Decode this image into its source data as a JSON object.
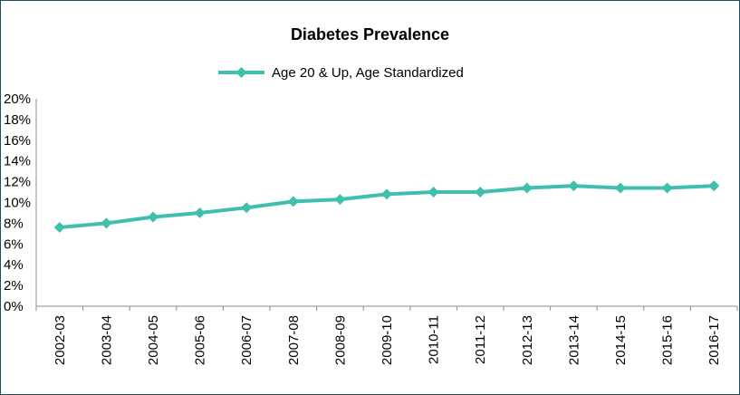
{
  "chart_data": {
    "type": "line",
    "title": "Diabetes Prevalence",
    "xlabel": "",
    "ylabel": "",
    "categories": [
      "2002-03",
      "2003-04",
      "2004-05",
      "2005-06",
      "2006-07",
      "2007-08",
      "2008-09",
      "2009-10",
      "2010-11",
      "2011-12",
      "2012-13",
      "2013-14",
      "2014-15",
      "2015-16",
      "2016-17"
    ],
    "series": [
      {
        "name": "Age 20 & Up, Age Standardized",
        "values": [
          7.6,
          8.0,
          8.6,
          9.0,
          9.5,
          10.1,
          10.3,
          10.8,
          11.0,
          11.0,
          11.4,
          11.6,
          11.4,
          11.4,
          11.6
        ],
        "color": "#3fbfad"
      }
    ],
    "ylim": [
      0,
      20
    ],
    "yticks": [
      "0%",
      "2%",
      "4%",
      "6%",
      "8%",
      "10%",
      "12%",
      "14%",
      "16%",
      "18%",
      "20%"
    ],
    "grid": false,
    "legend": "top-center"
  }
}
